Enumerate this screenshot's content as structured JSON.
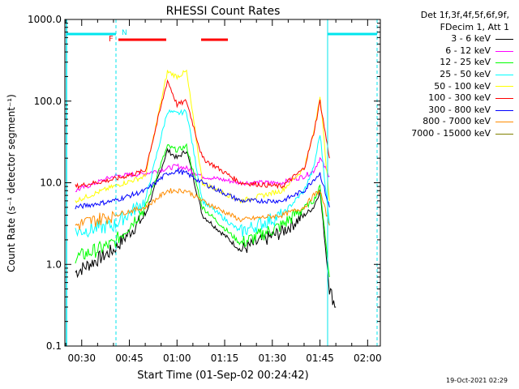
{
  "chart_data": {
    "type": "line",
    "title": "RHESSI Count Rates",
    "xlabel": "Start Time (01-Sep-02 00:24:42)",
    "ylabel": "Count Rate (s⁻¹ detector segment⁻¹)",
    "yscale": "log",
    "ylim": [
      0.1,
      1000
    ],
    "y_ticks": [
      {
        "value": 0.1,
        "label": "0.1"
      },
      {
        "value": 1,
        "label": "1.0"
      },
      {
        "value": 10,
        "label": "10.0"
      },
      {
        "value": 100,
        "label": "100.0"
      },
      {
        "value": 1000,
        "label": "1000.0"
      }
    ],
    "xlim": [
      "00:24:42",
      "02:04:00"
    ],
    "x_ticks": [
      "00:30",
      "00:45",
      "01:00",
      "01:15",
      "01:30",
      "01:45",
      "02:00"
    ],
    "x": [
      "00:28",
      "00:40",
      "00:50",
      "00:57",
      "01:00",
      "01:03",
      "01:08",
      "01:20",
      "01:33",
      "01:40",
      "01:43",
      "01:45",
      "01:48",
      "01:50"
    ],
    "series": [
      {
        "name": "3 - 6 keV",
        "color": "#000000",
        "values": [
          0.8,
          1.5,
          4,
          25,
          20,
          25,
          4,
          1.5,
          2.5,
          4,
          5,
          8,
          0.5,
          0.3
        ]
      },
      {
        "name": "6 - 12 keV",
        "color": "#ff00ff",
        "values": [
          8,
          12,
          13,
          15,
          16,
          15,
          12,
          10,
          10,
          12,
          14,
          20,
          12,
          null
        ]
      },
      {
        "name": "12 - 25 keV",
        "color": "#00ff00",
        "values": [
          1.2,
          1.8,
          5,
          28,
          25,
          28,
          5,
          1.8,
          3,
          5,
          6,
          9,
          0.7,
          null
        ]
      },
      {
        "name": "25 - 50 keV",
        "color": "#00ffff",
        "values": [
          2.5,
          3,
          6,
          75,
          70,
          75,
          6,
          2.5,
          4,
          8,
          15,
          40,
          3,
          null
        ]
      },
      {
        "name": "50 - 100 keV",
        "color": "#ffff00",
        "values": [
          6,
          9,
          12,
          230,
          200,
          230,
          10,
          6,
          8,
          15,
          40,
          120,
          6,
          null
        ]
      },
      {
        "name": "100 - 300 keV",
        "color": "#ff0000",
        "values": [
          9,
          11,
          14,
          180,
          90,
          100,
          20,
          10,
          9,
          15,
          40,
          100,
          20,
          null
        ]
      },
      {
        "name": "300 - 800 keV",
        "color": "#0000ff",
        "values": [
          5,
          6,
          8,
          13,
          14,
          13,
          10,
          6,
          6,
          8,
          11,
          13,
          5,
          null
        ]
      },
      {
        "name": "800 - 7000 keV",
        "color": "#ff8c00",
        "values": [
          3,
          4,
          5,
          8,
          8,
          8,
          6,
          3.5,
          4,
          5,
          7,
          8,
          3,
          null
        ]
      },
      {
        "name": "7000 - 15000 keV",
        "color": "#808000",
        "values": [
          null,
          null,
          null,
          null,
          null,
          null,
          null,
          null,
          null,
          null,
          null,
          null,
          null,
          null
        ]
      }
    ],
    "grid": false,
    "legend_location": "right"
  },
  "legend": {
    "header_line1": "Det 1f,3f,4f,5f,6f,9f,",
    "header_line2": "FDecim 1, Att 1"
  },
  "annotations": {
    "flag_f": "F",
    "flag_n": "N",
    "timestamp": "19-Oct-2021 02:29"
  },
  "colors": {
    "axes": "#000000",
    "saa_lines": "#00e5ee",
    "flare_flag": "#ff0000"
  }
}
